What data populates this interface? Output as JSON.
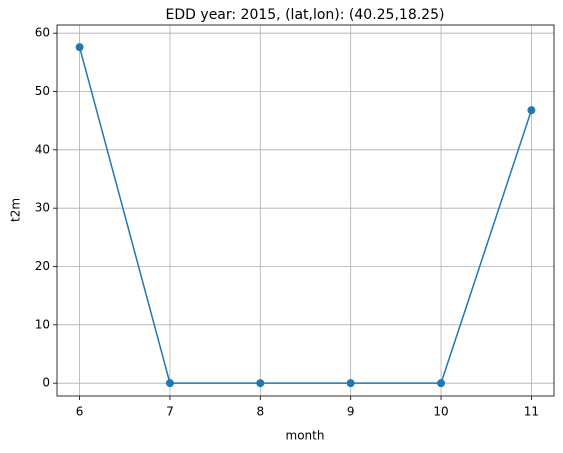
{
  "chart_data": {
    "type": "line",
    "title": "EDD year: 2015, (lat,lon): (40.25,18.25)",
    "x_label": "month",
    "y_label": "t2m",
    "x": [
      6,
      7,
      8,
      9,
      10,
      11
    ],
    "values": [
      57.6,
      0,
      0,
      0,
      0,
      46.8
    ],
    "color": "#1f77b4",
    "marker": "circle",
    "xlim": [
      5.75,
      11.25
    ],
    "ylim": [
      -2.2,
      61.4
    ],
    "xticks": [
      6,
      7,
      8,
      9,
      10,
      11
    ],
    "yticks": [
      0,
      10,
      20,
      30,
      40,
      50,
      60
    ],
    "grid": true
  }
}
